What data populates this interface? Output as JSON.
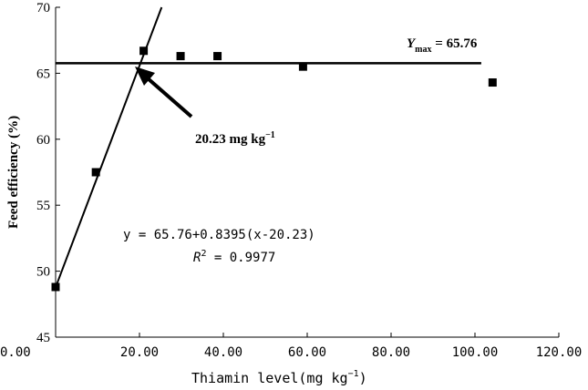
{
  "chart_data": {
    "type": "scatter",
    "xlabel": "Thiamin level(mg kg",
    "xlabel_sup": "−1",
    "xlabel_close": ")",
    "ylabel": "Feed efficiency (%)",
    "xlim": [
      0,
      120
    ],
    "ylim": [
      45,
      70
    ],
    "xticks": [
      "0.00",
      "20.00",
      "40.00",
      "60.00",
      "80.00",
      "100.00",
      "120.00"
    ],
    "yticks": [
      "45",
      "50",
      "55",
      "60",
      "65",
      "70"
    ],
    "grid": false,
    "points": {
      "x": [
        0.0,
        9.6,
        21.0,
        29.8,
        38.6,
        59.0,
        104.2
      ],
      "y": [
        48.8,
        57.5,
        66.7,
        66.3,
        66.3,
        65.5,
        64.3
      ]
    },
    "fit": {
      "model": "broken-line",
      "breakpoint_x": 20.23,
      "ymax": 65.76,
      "slope": 0.8395
    },
    "annotations": {
      "ymax_label_main": "Y",
      "ymax_label_sub": "max",
      "ymax_label_value": " = 65.76",
      "breakpoint_label": "20.23 mg kg",
      "breakpoint_label_sup": "−1",
      "equation_line1": "y = 65.76+0.8395(x-20.23)",
      "r2_prefix": "R",
      "r2_sup": "2",
      "r2_value": " = 0.9977"
    }
  }
}
